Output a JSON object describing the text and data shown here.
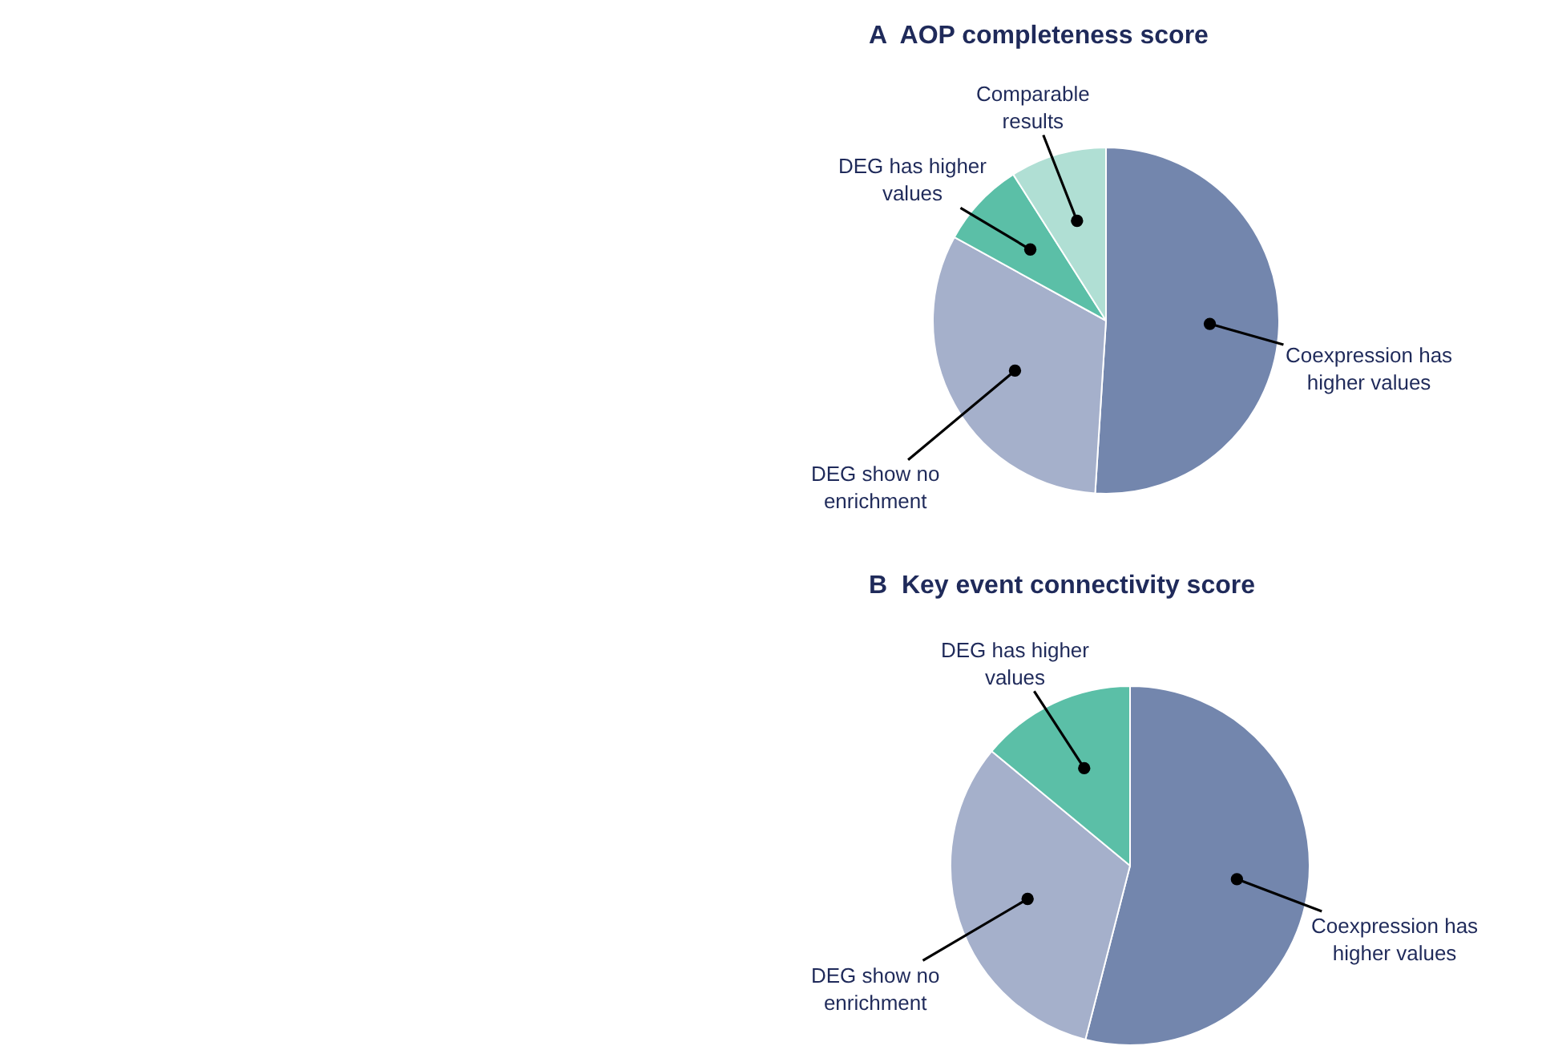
{
  "chart_data": [
    {
      "type": "pie",
      "title": "A  AOP completeness score",
      "categories": [
        "Coexpression has higher values",
        "DEG show no enrichment",
        "DEG has higher values",
        "Comparable results"
      ],
      "values": [
        51,
        32,
        8,
        9
      ],
      "colors": [
        "#7386ad",
        "#a5b0cb",
        "#5bbfa7",
        "#b0dfd4"
      ],
      "legend": false
    },
    {
      "type": "pie",
      "title": "B  Key event connectivity score",
      "categories": [
        "Coexpression has higher values",
        "DEG show no enrichment",
        "DEG has higher values"
      ],
      "values": [
        54,
        32,
        14
      ],
      "colors": [
        "#7386ad",
        "#a5b0cb",
        "#5bbfa7"
      ],
      "legend": false
    }
  ]
}
